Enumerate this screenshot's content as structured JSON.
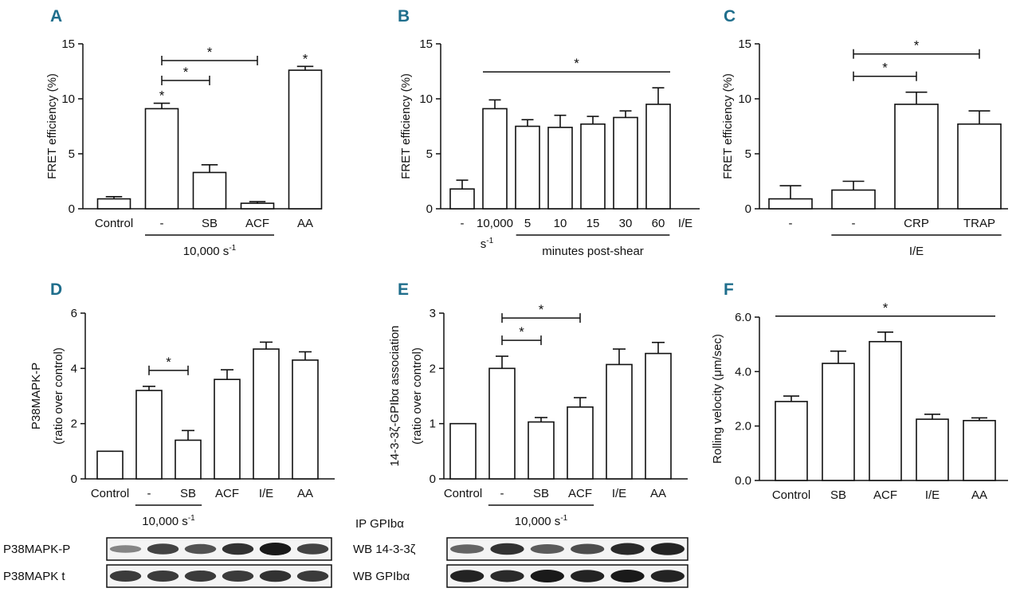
{
  "colors": {
    "panel_letter": "#1f6e8c",
    "bar_fill": "#ffffff",
    "ink": "#111111",
    "blot_band": "#1a1a1a"
  },
  "chart_data": [
    {
      "panel": "A",
      "type": "bar",
      "ylabel": "FRET efficiency (%)",
      "ylim": [
        0,
        15
      ],
      "yticks": [
        "0",
        "5",
        "10",
        "15"
      ],
      "categories": [
        "Control",
        "-",
        "SB",
        "ACF",
        "AA"
      ],
      "values": [
        0.9,
        9.1,
        3.3,
        0.5,
        12.6
      ],
      "errors": [
        0.2,
        0.5,
        0.7,
        0.15,
        0.35
      ],
      "group_label": "10,000 s",
      "group_label_sup": "-1",
      "group_span": [
        1,
        3
      ],
      "comparisons": [
        {
          "from": 1,
          "to": 2,
          "label": "*"
        },
        {
          "from": 1,
          "to": 3,
          "label": "*"
        }
      ],
      "stars": [
        {
          "index": 1,
          "label": "*"
        },
        {
          "index": 4,
          "label": "*"
        }
      ]
    },
    {
      "panel": "B",
      "type": "bar",
      "ylabel": "FRET efficiency (%)",
      "ylim": [
        0,
        15
      ],
      "yticks": [
        "0",
        "5",
        "10",
        "15"
      ],
      "categories": [
        "-",
        "10,000",
        "5",
        "10",
        "15",
        "30",
        "60"
      ],
      "values": [
        1.8,
        9.1,
        7.5,
        7.4,
        7.7,
        8.3,
        9.5
      ],
      "errors": [
        0.8,
        0.8,
        0.6,
        1.1,
        0.7,
        0.6,
        1.5
      ],
      "extra_label": "I/E",
      "category_sublabel": {
        "index": 1,
        "text": "s",
        "sup": "-1"
      },
      "group_label": "minutes post-shear",
      "group_span": [
        2,
        6
      ],
      "comparisons": [
        {
          "from": 1,
          "to": 6,
          "label": "*",
          "type": "line"
        }
      ]
    },
    {
      "panel": "C",
      "type": "bar",
      "ylabel": "FRET efficiency (%)",
      "ylim": [
        0,
        15
      ],
      "yticks": [
        "0",
        "5",
        "10",
        "15"
      ],
      "categories": [
        "-",
        "-",
        "CRP",
        "TRAP"
      ],
      "values": [
        0.9,
        1.7,
        9.5,
        7.7
      ],
      "errors": [
        1.2,
        0.8,
        1.1,
        1.2
      ],
      "group_label": "I/E",
      "group_span": [
        1,
        3
      ],
      "comparisons": [
        {
          "from": 1,
          "to": 2,
          "label": "*"
        },
        {
          "from": 1,
          "to": 3,
          "label": "*"
        }
      ]
    },
    {
      "panel": "D",
      "type": "bar",
      "ylabel": "P38MAPK-P",
      "ylabel2": "(ratio over control)",
      "ylim": [
        0,
        6
      ],
      "yticks": [
        "0",
        "2",
        "4",
        "6"
      ],
      "categories": [
        "Control",
        "-",
        "SB",
        "ACF",
        "I/E",
        "AA"
      ],
      "values": [
        1.0,
        3.2,
        1.4,
        3.6,
        4.7,
        4.3
      ],
      "errors": [
        0.0,
        0.15,
        0.35,
        0.35,
        0.25,
        0.3
      ],
      "group_label": "10,000 s",
      "group_label_sup": "-1",
      "group_span": [
        1,
        2
      ],
      "comparisons": [
        {
          "from": 1,
          "to": 2,
          "label": "*"
        }
      ]
    },
    {
      "panel": "E",
      "type": "bar",
      "ylabel": "14-3-3ζ-GPIbα association",
      "ylabel2": "(ratio over control)",
      "ylim": [
        0,
        3
      ],
      "yticks": [
        "0",
        "1",
        "2",
        "3"
      ],
      "categories": [
        "Control",
        "-",
        "SB",
        "ACF",
        "I/E",
        "AA"
      ],
      "values": [
        1.0,
        2.0,
        1.03,
        1.3,
        2.07,
        2.27
      ],
      "errors": [
        0.0,
        0.22,
        0.08,
        0.17,
        0.28,
        0.2
      ],
      "group_label": "10,000 s",
      "group_label_sup": "-1",
      "group_span": [
        1,
        3
      ],
      "comparisons": [
        {
          "from": 1,
          "to": 2,
          "label": "*"
        },
        {
          "from": 1,
          "to": 3,
          "label": "*"
        }
      ]
    },
    {
      "panel": "F",
      "type": "bar",
      "ylabel": "Rolling velocity (μm/sec)",
      "ylim": [
        0,
        6
      ],
      "yticks": [
        "0.0",
        "2.0",
        "4.0",
        "6.0"
      ],
      "categories": [
        "Control",
        "SB",
        "ACF",
        "I/E",
        "AA"
      ],
      "values": [
        2.9,
        4.3,
        5.1,
        2.25,
        2.2
      ],
      "errors": [
        0.2,
        0.45,
        0.35,
        0.18,
        0.1
      ],
      "comparisons": [
        {
          "from": 0,
          "to": 4,
          "label": "*",
          "type": "line"
        }
      ]
    }
  ],
  "blots": {
    "D": {
      "rows": [
        "P38MAPK-P",
        "P38MAPK t"
      ],
      "intensity": [
        [
          0.35,
          0.75,
          0.65,
          0.85,
          1.0,
          0.75
        ],
        [
          0.8,
          0.8,
          0.8,
          0.8,
          0.85,
          0.8
        ]
      ]
    },
    "E": {
      "header": "IP GPIbα",
      "rows": [
        "WB 14-3-3ζ",
        "WB GPIbα"
      ],
      "intensity": [
        [
          0.55,
          0.85,
          0.6,
          0.7,
          0.9,
          0.95
        ],
        [
          0.95,
          0.9,
          1.0,
          0.95,
          1.0,
          0.95
        ]
      ]
    }
  }
}
